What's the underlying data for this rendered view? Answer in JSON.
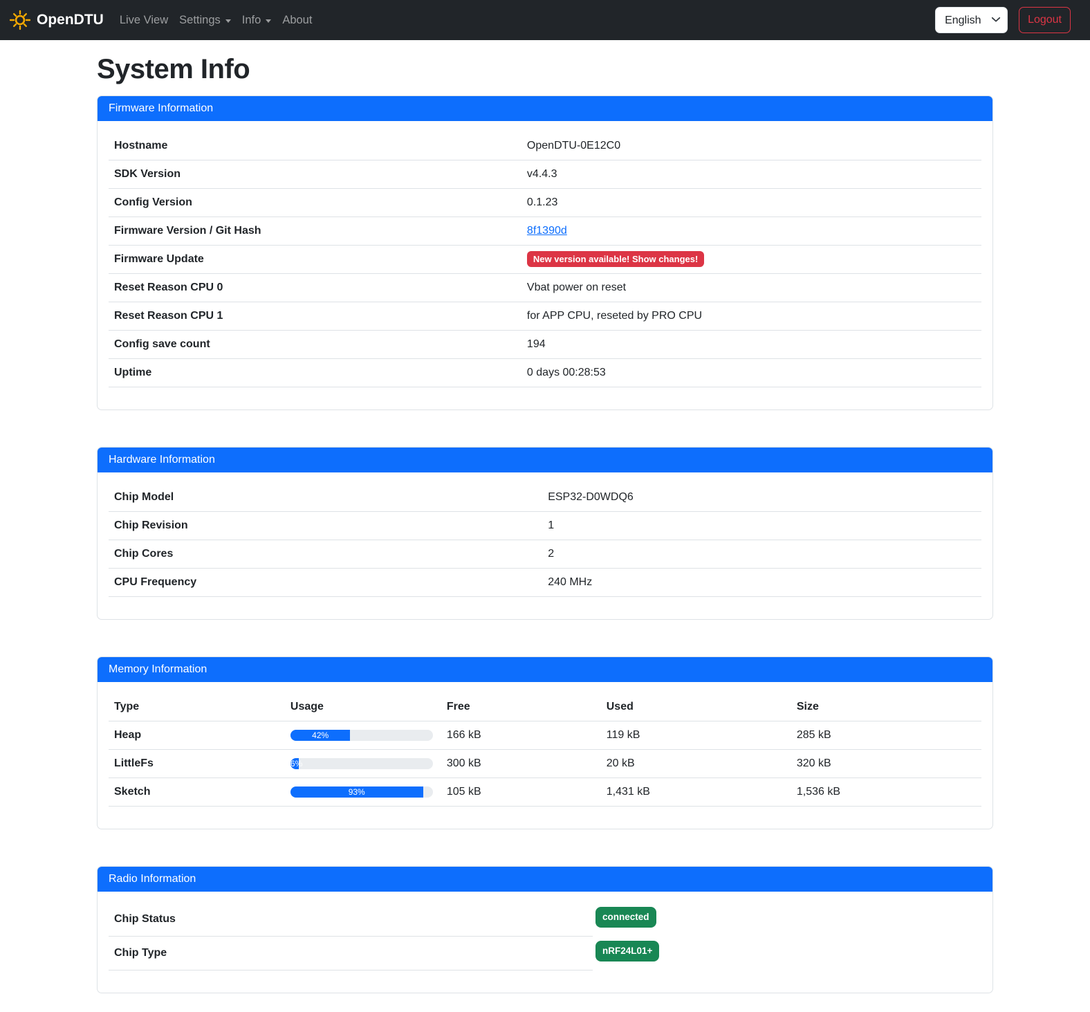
{
  "navbar": {
    "brand": "OpenDTU",
    "items": [
      {
        "label": "Live View",
        "has_dropdown": false
      },
      {
        "label": "Settings",
        "has_dropdown": true
      },
      {
        "label": "Info",
        "has_dropdown": true
      },
      {
        "label": "About",
        "has_dropdown": false
      }
    ],
    "language": {
      "selected": "English"
    },
    "logout_label": "Logout"
  },
  "page_title": "System Info",
  "firmware": {
    "title": "Firmware Information",
    "rows": [
      {
        "label": "Hostname",
        "value": "OpenDTU-0E12C0"
      },
      {
        "label": "SDK Version",
        "value": "v4.4.3"
      },
      {
        "label": "Config Version",
        "value": "0.1.23"
      },
      {
        "label": "Firmware Version / Git Hash",
        "value": "8f1390d"
      },
      {
        "label": "Firmware Update",
        "value": "New version available! Show changes!"
      },
      {
        "label": "Reset Reason CPU 0",
        "value": "Vbat power on reset"
      },
      {
        "label": "Reset Reason CPU 1",
        "value": "for APP CPU, reseted by PRO CPU"
      },
      {
        "label": "Config save count",
        "value": "194"
      },
      {
        "label": "Uptime",
        "value": "0 days 00:28:53"
      }
    ]
  },
  "hardware": {
    "title": "Hardware Information",
    "rows": [
      {
        "label": "Chip Model",
        "value": "ESP32-D0WDQ6"
      },
      {
        "label": "Chip Revision",
        "value": "1"
      },
      {
        "label": "Chip Cores",
        "value": "2"
      },
      {
        "label": "CPU Frequency",
        "value": "240 MHz"
      }
    ]
  },
  "memory": {
    "title": "Memory Information",
    "headers": [
      "Type",
      "Usage",
      "Free",
      "Used",
      "Size"
    ],
    "rows": [
      {
        "type": "Heap",
        "usage_pct": 42,
        "usage_label": "42%",
        "free": "166 kB",
        "used": "119 kB",
        "size": "285 kB"
      },
      {
        "type": "LittleFs",
        "usage_pct": 6,
        "usage_label": "6%",
        "free": "300 kB",
        "used": "20 kB",
        "size": "320 kB"
      },
      {
        "type": "Sketch",
        "usage_pct": 93,
        "usage_label": "93%",
        "free": "105 kB",
        "used": "1,431 kB",
        "size": "1,536 kB"
      }
    ]
  },
  "radio": {
    "title": "Radio Information",
    "rows": [
      {
        "label": "Chip Status",
        "value": "connected"
      },
      {
        "label": "Chip Type",
        "value": "nRF24L01+"
      }
    ]
  },
  "colors": {
    "primary": "#0d6efd",
    "danger": "#dc3545",
    "success": "#198754",
    "navbar_bg": "#212529"
  }
}
